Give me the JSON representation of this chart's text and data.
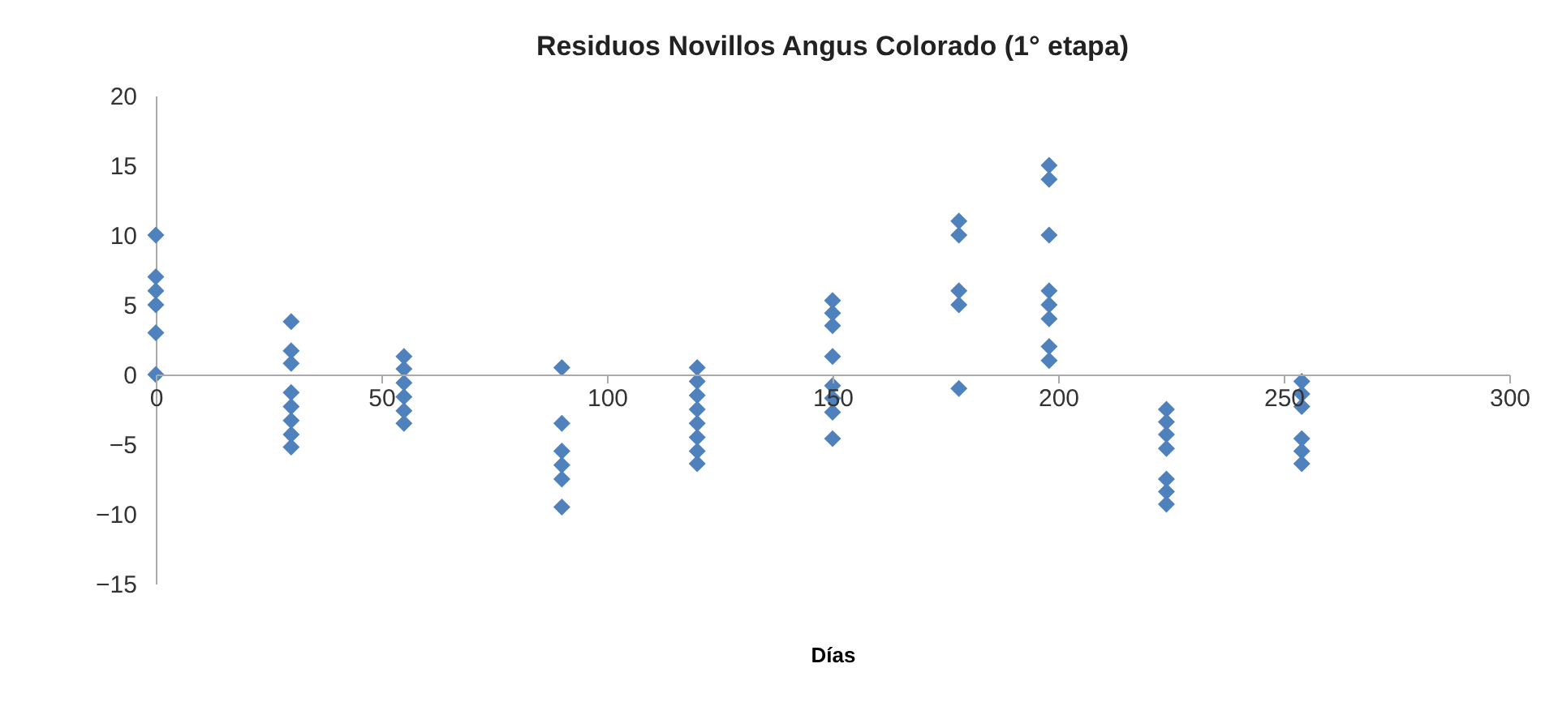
{
  "chart_data": {
    "type": "scatter",
    "title": "Residuos Novillos Angus Colorado (1° etapa)",
    "xlabel": "Días",
    "x": [
      0,
      0,
      0,
      0,
      0,
      0,
      30,
      30,
      30,
      30,
      30,
      30,
      30,
      30,
      55,
      55,
      55,
      55,
      55,
      55,
      90,
      90,
      90,
      90,
      90,
      90,
      120,
      120,
      120,
      120,
      120,
      120,
      120,
      120,
      150,
      150,
      150,
      150,
      150,
      150,
      150,
      150,
      178,
      178,
      178,
      178,
      178,
      198,
      198,
      198,
      198,
      198,
      198,
      198,
      198,
      224,
      224,
      224,
      224,
      224,
      224,
      224,
      254,
      254,
      254,
      254,
      254,
      254
    ],
    "values": [
      10,
      7,
      6,
      5,
      3,
      0,
      3.8,
      1.7,
      0.8,
      -1.3,
      -2.3,
      -3.3,
      -4.3,
      -5.2,
      1.3,
      0.4,
      -0.6,
      -1.6,
      -2.6,
      -3.5,
      0.5,
      -3.5,
      -5.5,
      -6.5,
      -7.5,
      -9.5,
      0.5,
      -0.5,
      -1.5,
      -2.5,
      -3.5,
      -4.5,
      -5.5,
      -6.4,
      5.3,
      4.4,
      3.5,
      1.3,
      -0.8,
      -1.7,
      -2.7,
      -4.6,
      11,
      10,
      6,
      5,
      -1,
      15,
      14,
      10,
      6,
      5,
      4,
      2,
      1,
      -2.5,
      -3.4,
      -4.3,
      -5.3,
      -7.5,
      -8.4,
      -9.3,
      -0.5,
      -1.4,
      -2.3,
      -4.6,
      -5.5,
      -6.4
    ],
    "color": "#4f81bd",
    "marker": "diamond",
    "xlim": [
      0,
      300
    ],
    "xticks": [
      0,
      50,
      100,
      150,
      200,
      250,
      300
    ],
    "ylim": [
      -15,
      20
    ],
    "yticks": [
      -15,
      -10,
      -5,
      0,
      5,
      10,
      15,
      20
    ],
    "grid": false
  }
}
